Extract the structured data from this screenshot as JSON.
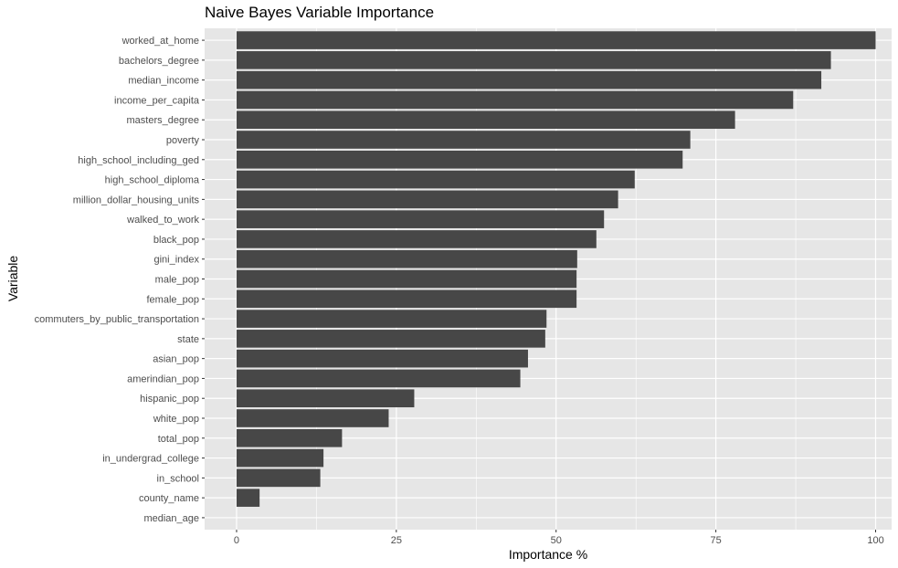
{
  "chart_data": {
    "type": "bar",
    "orientation": "horizontal",
    "title": "Naive Bayes Variable Importance",
    "xlabel": "Importance %",
    "ylabel": "Variable",
    "xlim": [
      -5,
      102.5
    ],
    "x_ticks": [
      0,
      25,
      50,
      75,
      100
    ],
    "grid": true,
    "legend": "none",
    "bar_color": "#474747",
    "panel_color": "#e6e6e6",
    "gridline_color": "#ffffff",
    "categories": [
      "worked_at_home",
      "bachelors_degree",
      "median_income",
      "income_per_capita",
      "masters_degree",
      "poverty",
      "high_school_including_ged",
      "high_school_diploma",
      "million_dollar_housing_units",
      "walked_to_work",
      "black_pop",
      "gini_index",
      "male_pop",
      "female_pop",
      "commuters_by_public_transportation",
      "state",
      "asian_pop",
      "amerindian_pop",
      "hispanic_pop",
      "white_pop",
      "total_pop",
      "in_undergrad_college",
      "in_school",
      "county_name",
      "median_age"
    ],
    "values": [
      100,
      93.0,
      91.5,
      87.1,
      78.0,
      71.0,
      69.8,
      62.3,
      59.7,
      57.5,
      56.3,
      53.3,
      53.2,
      53.2,
      48.5,
      48.3,
      45.6,
      44.4,
      27.8,
      23.8,
      16.5,
      13.6,
      13.1,
      3.6,
      0
    ]
  }
}
